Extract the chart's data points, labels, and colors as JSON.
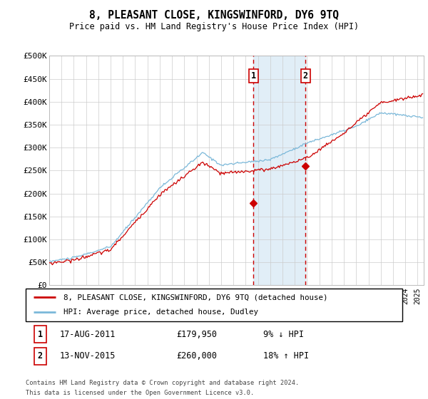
{
  "title": "8, PLEASANT CLOSE, KINGSWINFORD, DY6 9TQ",
  "subtitle": "Price paid vs. HM Land Registry's House Price Index (HPI)",
  "ylim": [
    0,
    500000
  ],
  "yticks": [
    0,
    50000,
    100000,
    150000,
    200000,
    250000,
    300000,
    350000,
    400000,
    450000,
    500000
  ],
  "ytick_labels": [
    "£0",
    "£50K",
    "£100K",
    "£150K",
    "£200K",
    "£250K",
    "£300K",
    "£350K",
    "£400K",
    "£450K",
    "£500K"
  ],
  "hpi_color": "#7ab8d9",
  "price_color": "#cc0000",
  "dashed_color": "#cc0000",
  "shaded_color": "#daeaf5",
  "transaction1_date": 2011.625,
  "transaction1_price": 179950,
  "transaction2_date": 2015.875,
  "transaction2_price": 260000,
  "legend_line1": "8, PLEASANT CLOSE, KINGSWINFORD, DY6 9TQ (detached house)",
  "legend_line2": "HPI: Average price, detached house, Dudley",
  "table_row1_date": "17-AUG-2011",
  "table_row1_price": "£179,950",
  "table_row1_hpi": "9% ↓ HPI",
  "table_row2_date": "13-NOV-2015",
  "table_row2_price": "£260,000",
  "table_row2_hpi": "18% ↑ HPI",
  "footer": "Contains HM Land Registry data © Crown copyright and database right 2024.\nThis data is licensed under the Open Government Licence v3.0.",
  "grid_color": "#cccccc",
  "xlim_start": 1995,
  "xlim_end": 2025.5
}
